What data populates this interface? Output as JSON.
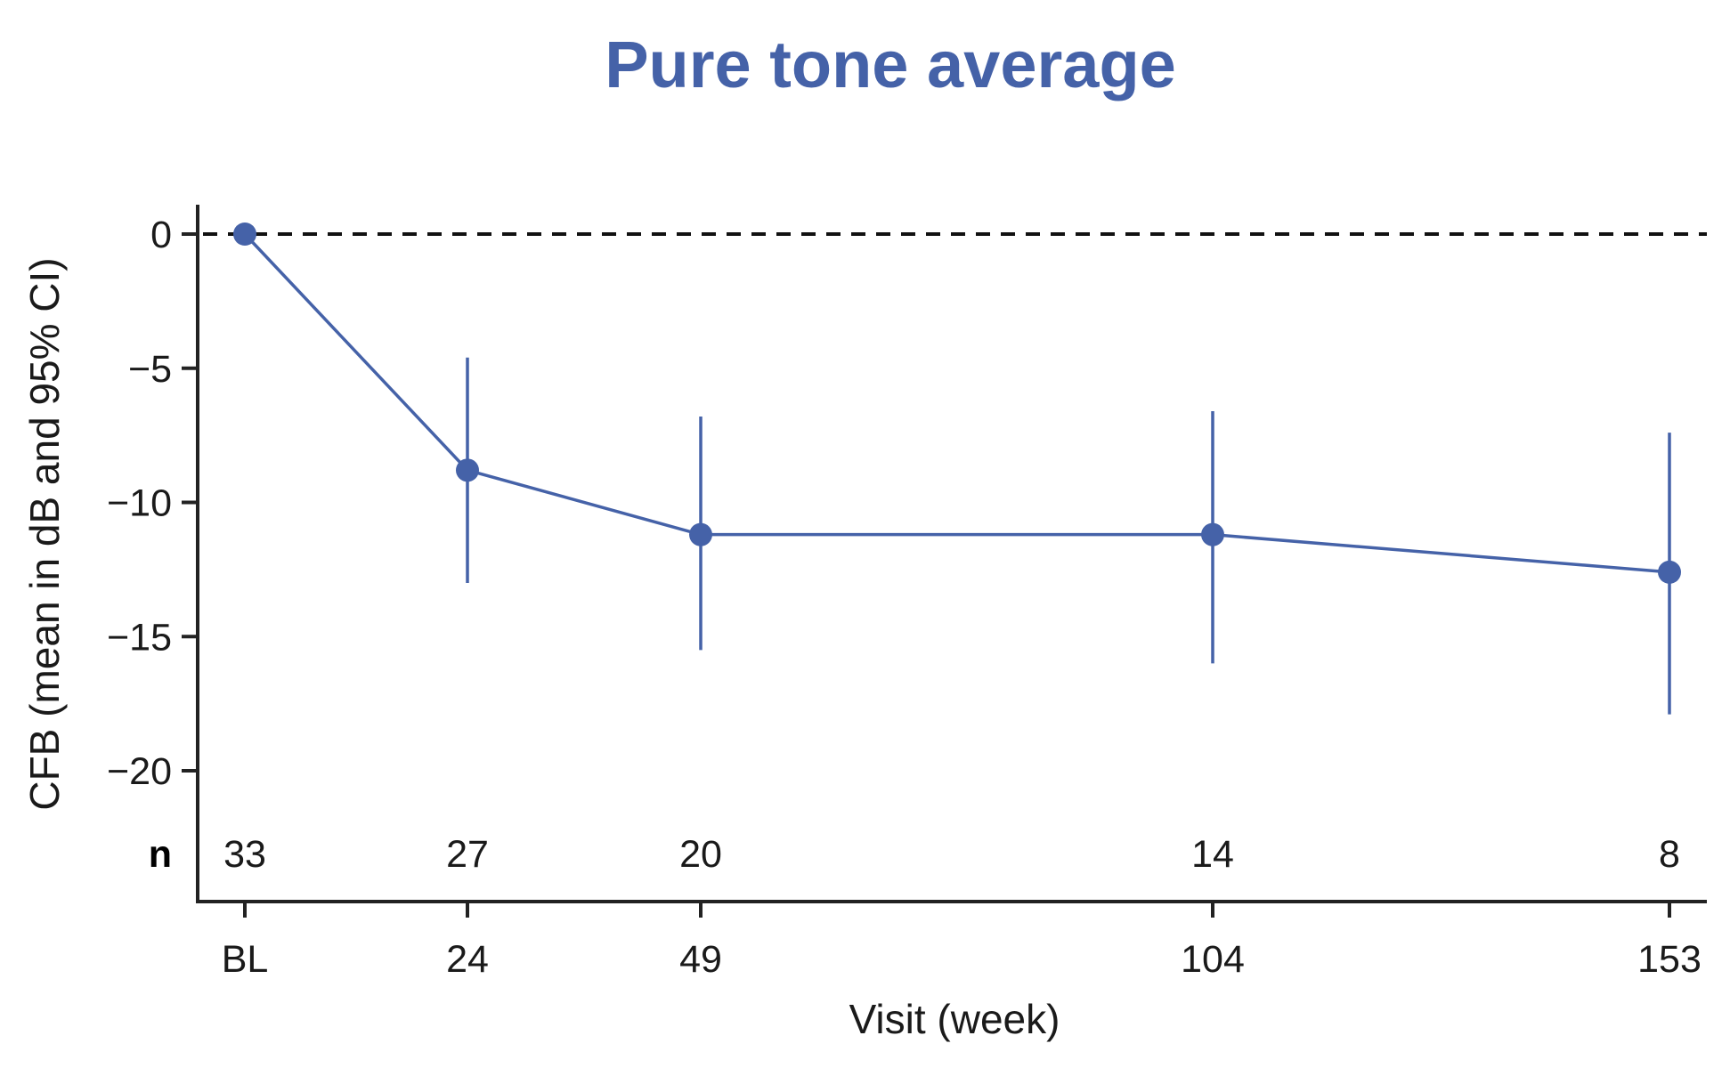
{
  "chart_data": {
    "type": "line",
    "title": "Pure tone average",
    "xlabel": "Visit (week)",
    "ylabel": "CFB (mean in dB and 95% CI)",
    "categories": [
      "BL",
      "24",
      "49",
      "104",
      "153"
    ],
    "x": [
      0,
      24,
      49,
      104,
      153
    ],
    "ylim": [
      -25,
      1
    ],
    "yticks": [
      0,
      -5,
      -10,
      -15,
      -20
    ],
    "ytick_labels": [
      "0",
      "−5",
      "−10",
      "−15",
      "−20"
    ],
    "reference_line": {
      "y": 0,
      "style": "dashed"
    },
    "series": [
      {
        "name": "Pure tone average",
        "values": [
          0,
          -8.8,
          -11.2,
          -11.2,
          -12.6
        ],
        "ci_lower": [
          0,
          -13.0,
          -15.5,
          -16.0,
          -17.9
        ],
        "ci_upper": [
          0,
          -4.6,
          -6.8,
          -6.6,
          -7.4
        ]
      }
    ],
    "n_label": "n",
    "n_values": [
      "33",
      "27",
      "20",
      "14",
      "8"
    ],
    "colors": {
      "series": "#4562a8",
      "title": "#4562a8",
      "axis": "#222222",
      "reference": "#111111"
    }
  }
}
